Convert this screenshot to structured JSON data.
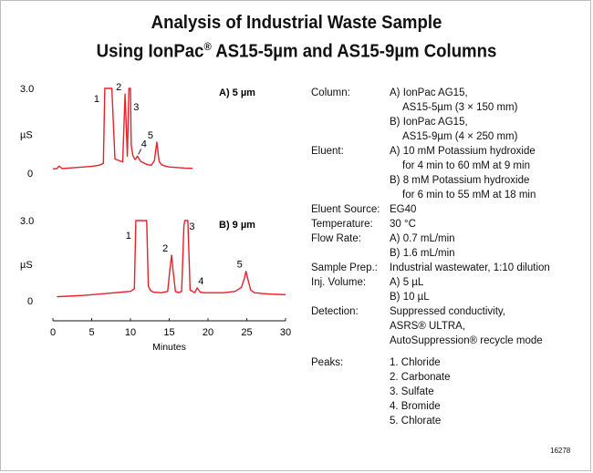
{
  "title": {
    "line1": "Analysis of Industrial Waste Sample",
    "line2_pre": "Using IonPac",
    "line2_reg": "®",
    "line2_post": " AS15-5µm and AS15-9µm Columns"
  },
  "chart_data": [
    {
      "type": "line",
      "panel_label": "A) 5 µm",
      "ylabel": "µS",
      "yticks": [
        "3.0",
        "0"
      ],
      "ylim": [
        0,
        3.0
      ],
      "xlim": [
        0,
        30
      ],
      "series_color": "#e8202a",
      "peak_labels": [
        {
          "label": "1",
          "x": 6.7
        },
        {
          "label": "2",
          "x": 9.3
        },
        {
          "label": "3",
          "x": 9.9
        },
        {
          "label": "4",
          "x": 10.9
        },
        {
          "label": "5",
          "x": 13.4
        }
      ],
      "x": [
        0,
        0.5,
        0.8,
        1.2,
        2,
        3,
        4,
        5,
        6,
        6.5,
        6.7,
        6.9,
        7.2,
        7.6,
        8,
        8.5,
        9.0,
        9.3,
        9.6,
        9.8,
        9.9,
        10.0,
        10.1,
        10.3,
        10.6,
        10.9,
        11.3,
        11.8,
        12.2,
        12.7,
        13.1,
        13.4,
        13.7,
        14,
        14.5,
        15,
        16,
        17,
        18
      ],
      "y": [
        0.15,
        0.16,
        0.25,
        0.16,
        0.18,
        0.2,
        0.22,
        0.24,
        0.28,
        0.35,
        3.0,
        3.0,
        3.0,
        3.0,
        0.5,
        0.45,
        0.4,
        2.8,
        0.6,
        3.0,
        3.0,
        3.0,
        1.0,
        0.62,
        0.48,
        0.6,
        0.42,
        0.35,
        0.3,
        0.28,
        0.45,
        1.1,
        0.42,
        0.3,
        0.25,
        0.22,
        0.2,
        0.18,
        0.17
      ]
    },
    {
      "type": "line",
      "panel_label": "B) 9 µm",
      "ylabel": "µS",
      "yticks": [
        "3.0",
        "0"
      ],
      "ylim": [
        0,
        3.0
      ],
      "xlim": [
        0,
        30
      ],
      "xlabel": "Minutes",
      "xticks": [
        "0",
        "5",
        "10",
        "15",
        "20",
        "25",
        "30"
      ],
      "series_color": "#e8202a",
      "peak_labels": [
        {
          "label": "1",
          "x": 10.8
        },
        {
          "label": "2",
          "x": 15.3
        },
        {
          "label": "3",
          "x": 17.1
        },
        {
          "label": "4",
          "x": 18.5
        },
        {
          "label": "5",
          "x": 24.9
        }
      ],
      "x": [
        0.5,
        2,
        4,
        6,
        8,
        10,
        10.5,
        10.7,
        10.9,
        11.1,
        11.6,
        12.1,
        12.3,
        12.6,
        13,
        14,
        14.8,
        15.1,
        15.3,
        15.5,
        15.8,
        16.2,
        16.6,
        16.9,
        17.0,
        17.2,
        17.4,
        17.7,
        18.0,
        18.3,
        18.6,
        19.0,
        19.5,
        20.5,
        22,
        23.5,
        24.3,
        24.7,
        24.9,
        25.1,
        25.5,
        26,
        27,
        28,
        29,
        30
      ],
      "y": [
        0.15,
        0.17,
        0.2,
        0.25,
        0.3,
        0.35,
        0.45,
        3.0,
        3.0,
        3.0,
        3.0,
        3.0,
        0.55,
        0.38,
        0.32,
        0.3,
        0.35,
        1.2,
        1.7,
        1.1,
        0.35,
        0.3,
        0.35,
        2.8,
        3.0,
        3.0,
        3.0,
        0.4,
        0.35,
        0.3,
        0.48,
        0.32,
        0.3,
        0.3,
        0.3,
        0.35,
        0.5,
        0.85,
        1.1,
        0.85,
        0.4,
        0.3,
        0.27,
        0.25,
        0.24,
        0.23
      ]
    }
  ],
  "conditions": [
    {
      "label": "Column:",
      "values": [
        "A) IonPac AG15,",
        "AS15-5µm (3 × 150 mm)",
        "B) IonPac AG15,",
        "AS15-9µm (4 × 250 mm)"
      ],
      "indent": [
        false,
        true,
        false,
        true
      ]
    },
    {
      "label": "Eluent:",
      "values": [
        "A) 10 mM Potassium hydroxide",
        "for 4 min to 60 mM at 9 min",
        "B) 8 mM Potassium hydroxide",
        "for 6 min to 55 mM at 18 min"
      ],
      "indent": [
        false,
        true,
        false,
        true
      ]
    },
    {
      "label": "Eluent Source:",
      "values": [
        "EG40"
      ],
      "indent": [
        false
      ]
    },
    {
      "label": "Temperature:",
      "values": [
        "30 °C"
      ],
      "indent": [
        false
      ]
    },
    {
      "label": "Flow Rate:",
      "values": [
        "A) 0.7 mL/min",
        "B) 1.6 mL/min"
      ],
      "indent": [
        false,
        false
      ]
    },
    {
      "label": "Sample Prep.:",
      "values": [
        "Industrial wastewater, 1:10 dilution"
      ],
      "indent": [
        false
      ]
    },
    {
      "label": "Inj. Volume:",
      "values": [
        "A) 5 µL",
        "B) 10 µL"
      ],
      "indent": [
        false,
        false
      ]
    },
    {
      "label": "Detection:",
      "values": [
        "Suppressed conductivity,",
        "ASRS® ULTRA,",
        "AutoSuppression® recycle mode"
      ],
      "indent": [
        false,
        false,
        false
      ]
    }
  ],
  "peaks": {
    "label": "Peaks:",
    "values": [
      "1.  Chloride",
      "2.  Carbonate",
      "3.  Sulfate",
      "4.  Bromide",
      "5.  Chlorate"
    ]
  },
  "figure_id": "16278"
}
